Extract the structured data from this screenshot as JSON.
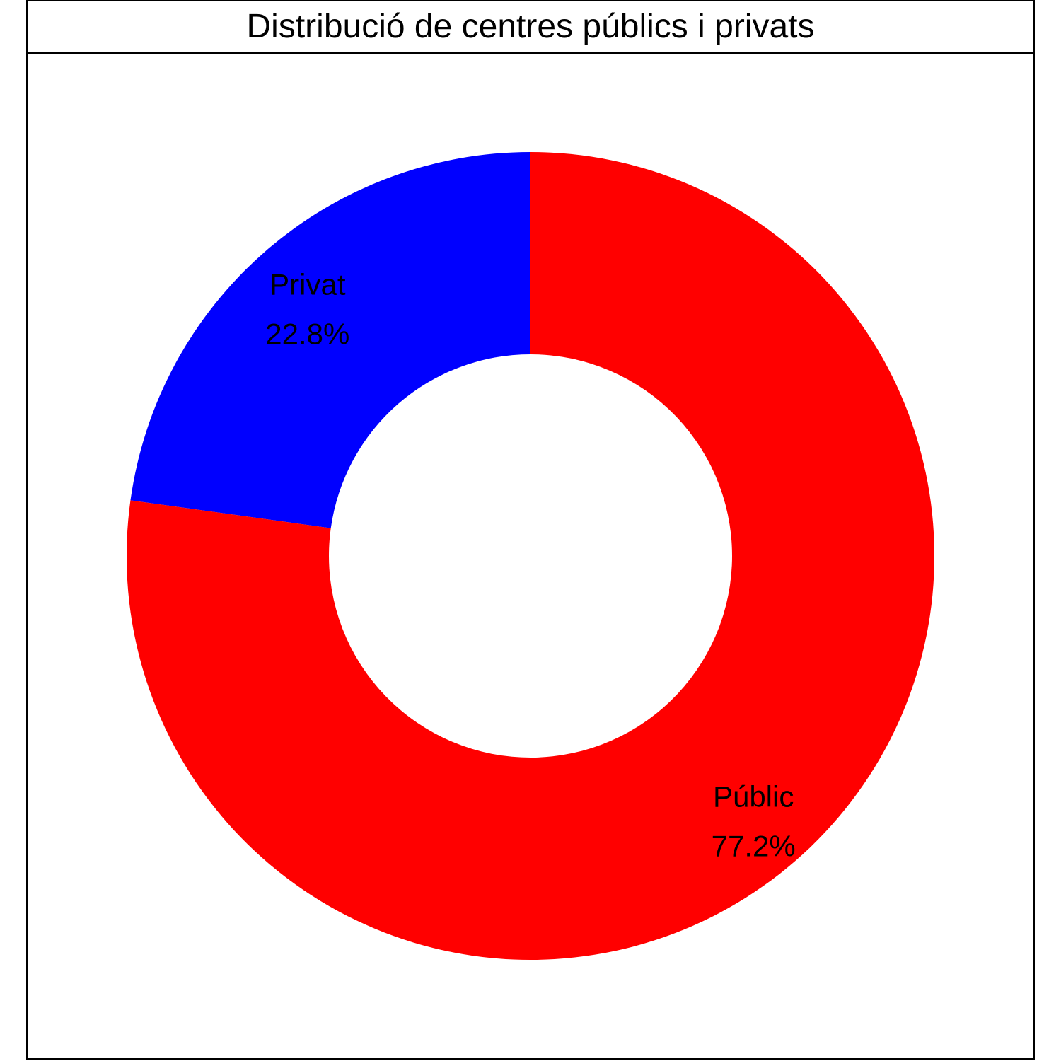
{
  "chart_data": {
    "type": "pie",
    "style": "donut",
    "title": "Distribució de centres públics i privats",
    "slices": [
      {
        "label": "Privat",
        "value": 22.8,
        "display_value": "22.8%",
        "color": "#0000ff"
      },
      {
        "label": "Públic",
        "value": 77.2,
        "display_value": "77.2%",
        "color": "#ff0000"
      }
    ],
    "legend": "none"
  }
}
